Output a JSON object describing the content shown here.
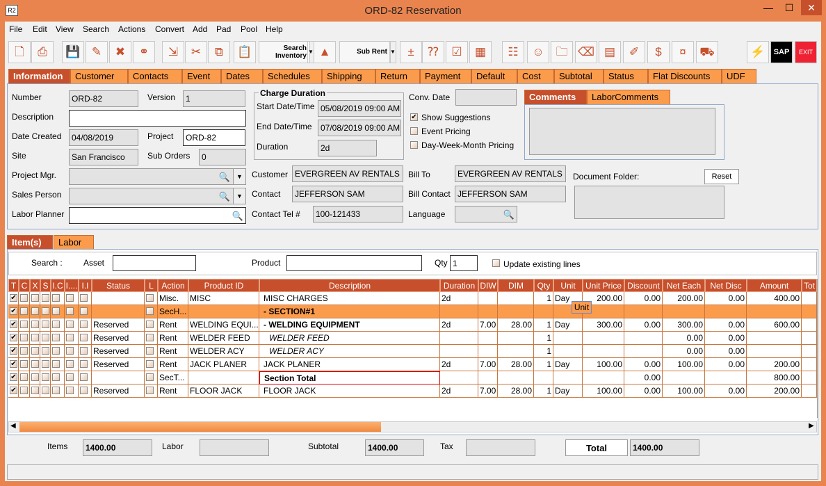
{
  "window": {
    "title": "ORD-82 Reservation",
    "app_icon": "R2"
  },
  "menu": [
    "File",
    "Edit",
    "View",
    "Search",
    "Actions",
    "Convert",
    "Add",
    "Pad",
    "Pool",
    "Help"
  ],
  "toolbar": {
    "search_inventory": "Search Inventory",
    "sub_rent": "Sub Rent",
    "sap": "SAP",
    "exit": "EXIT"
  },
  "tabs": [
    "Information",
    "Customer",
    "Contacts",
    "Event",
    "Dates",
    "Schedules",
    "Shipping",
    "Return",
    "Payment",
    "Default",
    "Cost",
    "Subtotal",
    "Status",
    "Flat Discounts",
    "UDF"
  ],
  "info": {
    "number_label": "Number",
    "number": "ORD-82",
    "version_label": "Version",
    "version": "1",
    "description_label": "Description",
    "description": "",
    "date_created_label": "Date Created",
    "date_created": "04/08/2019",
    "project_label": "Project",
    "project": "ORD-82",
    "site_label": "Site",
    "site": "San Francisco",
    "sub_orders_label": "Sub Orders",
    "sub_orders": "0",
    "project_mgr_label": "Project Mgr.",
    "sales_person_label": "Sales Person",
    "labor_planner_label": "Labor Planner",
    "charge_duration_title": "Charge Duration",
    "start_label": "Start Date/Time",
    "start": "05/08/2019 09:00 AM",
    "end_label": "End Date/Time",
    "end": "07/08/2019 09:00 AM",
    "duration_label": "Duration",
    "duration": "2d",
    "conv_date_label": "Conv. Date",
    "show_suggestions": "Show Suggestions",
    "show_suggestions_checked": true,
    "event_pricing": "Event Pricing",
    "dwm_pricing": "Day-Week-Month Pricing",
    "customer_label": "Customer",
    "customer": "EVERGREEN AV RENTALS",
    "bill_to_label": "Bill To",
    "bill_to": "EVERGREEN AV RENTALS",
    "contact_label": "Contact",
    "contact": "JEFFERSON SAM",
    "bill_contact_label": "Bill Contact",
    "bill_contact": "JEFFERSON SAM",
    "contact_tel_label": "Contact Tel #",
    "contact_tel": "100-121433",
    "language_label": "Language",
    "comments_tabs": [
      "Comments",
      "LaborComments"
    ],
    "document_folder_label": "Document Folder:",
    "reset": "Reset"
  },
  "lower_tabs": [
    "Item(s)",
    "Labor"
  ],
  "search": {
    "search_label": "Search :",
    "asset_label": "Asset",
    "product_label": "Product",
    "qty_label": "Qty",
    "qty": "1",
    "update_existing": "Update existing lines"
  },
  "columns": [
    "T",
    "C",
    "X",
    "S",
    "I.C",
    "I....",
    "I.I",
    "Status",
    "L",
    "Action",
    "Product ID",
    "Description",
    "Duration",
    "DIW",
    "DIM",
    "Qty",
    "Unit",
    "Unit Price",
    "Discount",
    "Net Each",
    "Net Disc",
    "Amount",
    "Tot"
  ],
  "rows": [
    {
      "status": "",
      "action": "Misc.",
      "product": "MISC",
      "desc": "MISC CHARGES",
      "dur": "2d",
      "diw": "",
      "dim": "",
      "qty": "1",
      "unit": "Day",
      "price": "200.00",
      "disc": "0.00",
      "net": "200.00",
      "netdisc": "0.00",
      "amount": "400.00"
    },
    {
      "status": "",
      "action": "SecH...",
      "product": "",
      "desc": "-  SECTION#1",
      "dur": "",
      "diw": "",
      "dim": "",
      "qty": "",
      "unit": "",
      "price": "",
      "disc": "",
      "net": "",
      "netdisc": "",
      "amount": ""
    },
    {
      "status": "Reserved",
      "action": "Rent",
      "product": "WELDING EQUI...",
      "desc": "-  WELDING EQUIPMENT",
      "dur": "2d",
      "diw": "7.00",
      "dim": "28.00",
      "qty": "1",
      "unit": "Day",
      "price": "300.00",
      "disc": "0.00",
      "net": "300.00",
      "netdisc": "0.00",
      "amount": "600.00"
    },
    {
      "status": "Reserved",
      "action": "Rent",
      "product": "WELDER FEED",
      "desc": "WELDER FEED",
      "dur": "",
      "diw": "",
      "dim": "",
      "qty": "1",
      "unit": "",
      "price": "",
      "disc": "",
      "net": "0.00",
      "netdisc": "0.00",
      "amount": ""
    },
    {
      "status": "Reserved",
      "action": "Rent",
      "product": "WELDER ACY",
      "desc": "WELDER ACY",
      "dur": "",
      "diw": "",
      "dim": "",
      "qty": "1",
      "unit": "",
      "price": "",
      "disc": "",
      "net": "0.00",
      "netdisc": "0.00",
      "amount": ""
    },
    {
      "status": "Reserved",
      "action": "Rent",
      "product": "JACK PLANER",
      "desc": "JACK PLANER",
      "dur": "2d",
      "diw": "7.00",
      "dim": "28.00",
      "qty": "1",
      "unit": "Day",
      "price": "100.00",
      "disc": "0.00",
      "net": "100.00",
      "netdisc": "0.00",
      "amount": "200.00"
    },
    {
      "status": "",
      "action": "SecT...",
      "product": "",
      "desc": "Section Total",
      "dur": "",
      "diw": "",
      "dim": "",
      "qty": "",
      "unit": "",
      "price": "",
      "disc": "0.00",
      "net": "",
      "netdisc": "",
      "amount": "800.00"
    },
    {
      "status": "Reserved",
      "action": "Rent",
      "product": "FLOOR JACK",
      "desc": "FLOOR JACK",
      "dur": "2d",
      "diw": "7.00",
      "dim": "28.00",
      "qty": "1",
      "unit": "Day",
      "price": "100.00",
      "disc": "0.00",
      "net": "100.00",
      "netdisc": "0.00",
      "amount": "200.00"
    }
  ],
  "tooltip": "Unit",
  "totals": {
    "items_label": "Items",
    "items": "1400.00",
    "labor_label": "Labor",
    "labor": "",
    "subtotal_label": "Subtotal",
    "subtotal": "1400.00",
    "tax_label": "Tax",
    "tax": "",
    "total_label": "Total",
    "total": "1400.00"
  },
  "colors": {
    "accent": "#c74f2c",
    "tab": "#fb9b4c",
    "frame": "#e9844e"
  }
}
